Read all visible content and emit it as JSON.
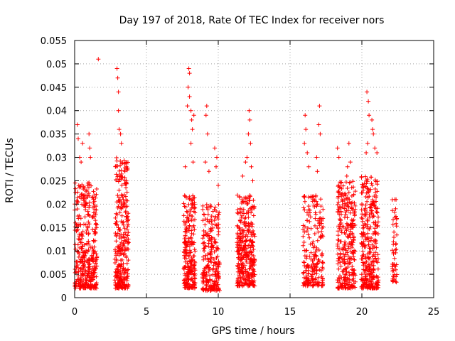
{
  "chart_data": {
    "type": "scatter",
    "title": "Day 197 of 2018, Rate Of TEC Index for receiver nors",
    "xlabel": "GPS time / hours",
    "ylabel": "ROTI / TECUs",
    "xlim": [
      0,
      25
    ],
    "ylim": [
      0,
      0.055
    ],
    "x_ticks": [
      0,
      5,
      10,
      15,
      20,
      25
    ],
    "x_tick_labels": [
      "0",
      "5",
      "10",
      "15",
      "20",
      "25"
    ],
    "y_ticks": [
      0,
      0.005,
      0.01,
      0.015,
      0.02,
      0.025,
      0.03,
      0.035,
      0.04,
      0.045,
      0.05,
      0.055
    ],
    "y_tick_labels": [
      "0",
      "0.005",
      "0.01",
      "0.015",
      "0.02",
      "0.025",
      "0.03",
      "0.035",
      "0.04",
      "0.045",
      "0.05",
      "0.055"
    ],
    "grid": true,
    "marker": "+",
    "color": "#ff0000",
    "series": [
      {
        "name": "ROTI",
        "clusters": [
          {
            "x_range": [
              0.0,
              1.55
            ],
            "y_range": [
              0.002,
              0.025
            ],
            "count": 380,
            "outliers": [
              [
                0.2,
                0.037
              ],
              [
                0.25,
                0.034
              ],
              [
                0.35,
                0.03
              ],
              [
                0.45,
                0.029
              ],
              [
                0.55,
                0.033
              ],
              [
                1.0,
                0.035
              ],
              [
                1.05,
                0.032
              ],
              [
                1.1,
                0.03
              ],
              [
                1.4,
                0.022
              ],
              [
                1.65,
                0.051
              ]
            ]
          },
          {
            "x_range": [
              2.8,
              3.75
            ],
            "y_range": [
              0.002,
              0.03
            ],
            "count": 300,
            "outliers": [
              [
                2.95,
                0.049
              ],
              [
                3.0,
                0.047
              ],
              [
                3.05,
                0.044
              ],
              [
                3.05,
                0.04
              ],
              [
                3.1,
                0.036
              ],
              [
                3.2,
                0.035
              ],
              [
                3.25,
                0.033
              ],
              [
                3.5,
                0.027
              ],
              [
                3.6,
                0.028
              ]
            ]
          },
          {
            "x_range": [
              7.6,
              8.4
            ],
            "y_range": [
              0.002,
              0.022
            ],
            "count": 240,
            "outliers": [
              [
                7.95,
                0.049
              ],
              [
                8.0,
                0.048
              ],
              [
                7.9,
                0.045
              ],
              [
                8.0,
                0.043
              ],
              [
                7.85,
                0.041
              ],
              [
                8.1,
                0.04
              ],
              [
                8.15,
                0.038
              ],
              [
                8.2,
                0.036
              ],
              [
                8.3,
                0.039
              ],
              [
                8.1,
                0.033
              ],
              [
                8.25,
                0.029
              ],
              [
                7.7,
                0.028
              ]
            ]
          },
          {
            "x_range": [
              8.9,
              10.1
            ],
            "y_range": [
              0.0015,
              0.02
            ],
            "count": 240,
            "outliers": [
              [
                9.2,
                0.041
              ],
              [
                9.15,
                0.039
              ],
              [
                9.25,
                0.035
              ],
              [
                9.1,
                0.029
              ],
              [
                9.35,
                0.027
              ],
              [
                9.75,
                0.032
              ],
              [
                9.9,
                0.03
              ],
              [
                9.85,
                0.028
              ],
              [
                10.0,
                0.024
              ]
            ]
          },
          {
            "x_range": [
              11.3,
              12.55
            ],
            "y_range": [
              0.0025,
              0.022
            ],
            "count": 340,
            "outliers": [
              [
                12.15,
                0.04
              ],
              [
                12.2,
                0.038
              ],
              [
                12.1,
                0.035
              ],
              [
                12.25,
                0.033
              ],
              [
                12.0,
                0.03
              ],
              [
                11.9,
                0.029
              ],
              [
                12.3,
                0.028
              ],
              [
                11.7,
                0.026
              ],
              [
                12.4,
                0.025
              ]
            ]
          },
          {
            "x_range": [
              15.9,
              17.3
            ],
            "y_range": [
              0.0025,
              0.022
            ],
            "count": 220,
            "outliers": [
              [
                16.05,
                0.039
              ],
              [
                16.1,
                0.036
              ],
              [
                16.0,
                0.033
              ],
              [
                16.2,
                0.031
              ],
              [
                16.3,
                0.028
              ],
              [
                17.05,
                0.041
              ],
              [
                17.0,
                0.037
              ],
              [
                17.1,
                0.035
              ],
              [
                16.85,
                0.03
              ],
              [
                16.9,
                0.027
              ]
            ]
          },
          {
            "x_range": [
              18.3,
              19.55
            ],
            "y_range": [
              0.002,
              0.025
            ],
            "count": 300,
            "outliers": [
              [
                18.3,
                0.032
              ],
              [
                18.4,
                0.03
              ],
              [
                19.1,
                0.033
              ],
              [
                19.2,
                0.029
              ],
              [
                19.0,
                0.028
              ],
              [
                18.95,
                0.026
              ]
            ]
          },
          {
            "x_range": [
              19.95,
              21.15
            ],
            "y_range": [
              0.002,
              0.026
            ],
            "count": 330,
            "outliers": [
              [
                20.35,
                0.044
              ],
              [
                20.45,
                0.042
              ],
              [
                20.5,
                0.039
              ],
              [
                20.7,
                0.038
              ],
              [
                20.75,
                0.036
              ],
              [
                20.8,
                0.035
              ],
              [
                20.4,
                0.033
              ],
              [
                20.9,
                0.032
              ],
              [
                20.3,
                0.031
              ],
              [
                21.05,
                0.031
              ]
            ]
          },
          {
            "x_range": [
              22.1,
              22.45
            ],
            "y_range": [
              0.003,
              0.021
            ],
            "count": 50,
            "outliers": [
              [
                22.3,
                0.021
              ],
              [
                22.35,
                0.019
              ]
            ]
          }
        ]
      }
    ]
  }
}
